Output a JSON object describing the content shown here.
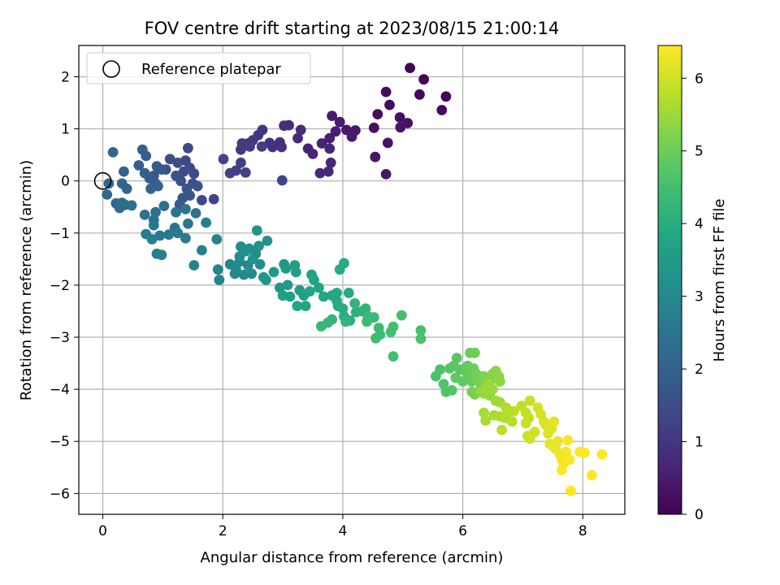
{
  "chart_data": {
    "type": "scatter",
    "title": "FOV centre drift starting at 2023/08/15 21:00:14",
    "xlabel": "Angular distance from reference (arcmin)",
    "ylabel": "Rotation from reference (arcmin)",
    "xlim": [
      -0.4,
      8.7
    ],
    "ylim": [
      -6.4,
      2.6
    ],
    "xticks": [
      0,
      2,
      4,
      6,
      8
    ],
    "yticks": [
      -6,
      -5,
      -4,
      -3,
      -2,
      -1,
      0,
      1,
      2
    ],
    "grid": true,
    "legend": {
      "placement": "top-left",
      "entries": [
        "Reference platepar"
      ]
    },
    "reference_point": {
      "x": 0,
      "y": 0
    },
    "colorbar": {
      "label": "Hours from first FF file",
      "min": 0,
      "max": 6.45,
      "ticks": [
        0,
        1,
        2,
        3,
        4,
        5,
        6
      ],
      "colormap": "viridis"
    },
    "points": [
      [
        5.12,
        2.17,
        0.05
      ],
      [
        5.35,
        1.95,
        0.08
      ],
      [
        5.72,
        1.62,
        0.1
      ],
      [
        5.65,
        1.36,
        0.12
      ],
      [
        5.28,
        1.66,
        0.15
      ],
      [
        4.72,
        1.71,
        0.18
      ],
      [
        4.78,
        1.46,
        0.2
      ],
      [
        4.58,
        1.28,
        0.22
      ],
      [
        4.52,
        1.02,
        0.25
      ],
      [
        4.95,
        1.22,
        0.28
      ],
      [
        5.08,
        1.11,
        0.3
      ],
      [
        4.96,
        1.03,
        0.33
      ],
      [
        4.75,
        0.73,
        0.35
      ],
      [
        4.54,
        0.46,
        0.38
      ],
      [
        4.72,
        0.13,
        0.4
      ],
      [
        4.06,
        0.98,
        0.42
      ],
      [
        4.21,
        0.97,
        0.45
      ],
      [
        4.15,
        0.85,
        0.48
      ],
      [
        3.95,
        1.13,
        0.5
      ],
      [
        3.82,
        1.25,
        0.53
      ],
      [
        3.88,
        0.95,
        0.55
      ],
      [
        3.78,
        0.82,
        0.58
      ],
      [
        3.65,
        0.72,
        0.6
      ],
      [
        3.42,
        0.62,
        0.62
      ],
      [
        3.5,
        0.52,
        0.65
      ],
      [
        3.78,
        0.62,
        0.68
      ],
      [
        3.8,
        0.35,
        0.7
      ],
      [
        3.76,
        0.18,
        0.72
      ],
      [
        3.62,
        0.15,
        0.75
      ],
      [
        3.25,
        0.82,
        0.78
      ],
      [
        3.3,
        0.98,
        0.8
      ],
      [
        3.1,
        1.07,
        0.82
      ],
      [
        3.02,
        1.06,
        0.85
      ],
      [
        2.95,
        0.74,
        0.88
      ],
      [
        2.98,
        0.65,
        0.9
      ],
      [
        2.83,
        0.65,
        0.92
      ],
      [
        2.78,
        0.73,
        0.95
      ],
      [
        2.66,
        0.98,
        0.98
      ],
      [
        2.59,
        0.88,
        1.0
      ],
      [
        2.5,
        0.78,
        1.02
      ],
      [
        2.42,
        0.72,
        1.05
      ],
      [
        2.32,
        0.72,
        1.08
      ],
      [
        2.3,
        0.6,
        1.1
      ],
      [
        2.45,
        0.66,
        1.12
      ],
      [
        2.65,
        0.66,
        1.15
      ],
      [
        2.3,
        0.35,
        1.18
      ],
      [
        2.22,
        0.2,
        1.2
      ],
      [
        2.12,
        0.15,
        1.22
      ],
      [
        2.38,
        0.16,
        1.25
      ],
      [
        2.01,
        0.42,
        1.28
      ],
      [
        2.99,
        0.01,
        1.3
      ],
      [
        1.85,
        -0.35,
        1.32
      ],
      [
        1.65,
        -0.37,
        1.35
      ],
      [
        1.42,
        0.63,
        1.38
      ],
      [
        1.38,
        0.39,
        1.4
      ],
      [
        1.45,
        0.25,
        1.42
      ],
      [
        1.52,
        0.14,
        1.45
      ],
      [
        1.35,
        0.18,
        1.48
      ],
      [
        1.25,
        0.35,
        1.5
      ],
      [
        1.12,
        0.42,
        1.52
      ],
      [
        1.05,
        0.22,
        1.55
      ],
      [
        1.22,
        0.1,
        1.58
      ],
      [
        1.3,
        0.0,
        1.6
      ],
      [
        1.4,
        -0.15,
        1.62
      ],
      [
        1.5,
        -0.05,
        1.65
      ],
      [
        1.58,
        -0.1,
        1.68
      ],
      [
        1.45,
        -0.28,
        1.7
      ],
      [
        1.33,
        -0.33,
        1.72
      ],
      [
        1.28,
        -0.45,
        1.75
      ],
      [
        0.9,
        0.28,
        1.78
      ],
      [
        0.98,
        0.22,
        1.8
      ],
      [
        0.85,
        0.1,
        1.82
      ],
      [
        0.88,
        -0.05,
        1.85
      ],
      [
        0.78,
        0.05,
        1.88
      ],
      [
        0.7,
        0.15,
        1.9
      ],
      [
        0.72,
        0.48,
        1.92
      ],
      [
        0.66,
        0.6,
        1.95
      ],
      [
        0.6,
        0.3,
        1.98
      ],
      [
        0.92,
        -0.1,
        2.0
      ],
      [
        0.8,
        -0.15,
        2.02
      ],
      [
        0.35,
        0.18,
        2.05
      ],
      [
        0.4,
        -0.15,
        2.08
      ],
      [
        0.32,
        -0.05,
        2.1
      ],
      [
        0.17,
        0.55,
        2.12
      ],
      [
        0.1,
        -0.05,
        2.15
      ],
      [
        0.07,
        -0.26,
        2.18
      ],
      [
        0.22,
        -0.43,
        2.2
      ],
      [
        0.28,
        -0.52,
        2.22
      ],
      [
        0.37,
        -0.46,
        2.25
      ],
      [
        0.48,
        -0.47,
        2.28
      ],
      [
        0.32,
        -0.42,
        2.3
      ],
      [
        1.02,
        -0.48,
        2.32
      ],
      [
        0.88,
        -0.6,
        2.35
      ],
      [
        0.85,
        -0.75,
        2.38
      ],
      [
        0.7,
        -0.65,
        2.4
      ],
      [
        1.22,
        -0.6,
        2.42
      ],
      [
        1.38,
        -0.54,
        2.45
      ],
      [
        1.55,
        -0.62,
        2.48
      ],
      [
        1.42,
        -0.82,
        2.5
      ],
      [
        1.2,
        -0.9,
        2.52
      ],
      [
        0.85,
        -0.85,
        2.55
      ],
      [
        0.95,
        -1.05,
        2.58
      ],
      [
        1.1,
        -1.03,
        2.6
      ],
      [
        1.25,
        -1.0,
        2.62
      ],
      [
        1.38,
        -1.1,
        2.65
      ],
      [
        0.72,
        -1.02,
        2.68
      ],
      [
        0.82,
        -1.12,
        2.7
      ],
      [
        0.9,
        -1.4,
        2.72
      ],
      [
        0.98,
        -1.42,
        2.75
      ],
      [
        1.72,
        -0.8,
        2.78
      ],
      [
        1.65,
        -1.33,
        2.8
      ],
      [
        1.52,
        -1.62,
        2.82
      ],
      [
        1.9,
        -1.12,
        2.85
      ],
      [
        1.92,
        -1.7,
        2.88
      ],
      [
        1.94,
        -1.9,
        2.9
      ],
      [
        2.12,
        -1.6,
        2.92
      ],
      [
        2.28,
        -1.55,
        2.95
      ],
      [
        2.42,
        -1.62,
        2.98
      ],
      [
        2.22,
        -1.7,
        3.0
      ],
      [
        2.2,
        -1.78,
        3.02
      ],
      [
        2.35,
        -1.8,
        3.05
      ],
      [
        2.48,
        -1.78,
        3.08
      ],
      [
        2.28,
        -1.45,
        3.1
      ],
      [
        2.3,
        -1.26,
        3.12
      ],
      [
        2.44,
        -1.3,
        3.15
      ],
      [
        2.55,
        -1.4,
        3.18
      ],
      [
        2.62,
        -1.6,
        3.2
      ],
      [
        2.38,
        -1.35,
        3.22
      ],
      [
        2.5,
        -1.5,
        3.25
      ],
      [
        2.6,
        -1.25,
        3.28
      ],
      [
        2.57,
        -0.95,
        3.3
      ],
      [
        2.74,
        -1.15,
        3.32
      ],
      [
        2.68,
        -1.85,
        3.35
      ],
      [
        2.72,
        -1.9,
        3.38
      ],
      [
        2.95,
        -2.05,
        3.4
      ],
      [
        3.08,
        -2.0,
        3.42
      ],
      [
        2.85,
        -1.75,
        3.45
      ],
      [
        3.05,
        -1.68,
        3.48
      ],
      [
        3.02,
        -1.6,
        3.5
      ],
      [
        3.2,
        -1.62,
        3.52
      ],
      [
        3.22,
        -1.75,
        3.55
      ],
      [
        3.28,
        -2.1,
        3.58
      ],
      [
        3.35,
        -2.2,
        3.6
      ],
      [
        3.12,
        -2.22,
        3.62
      ],
      [
        3.0,
        -2.2,
        3.65
      ],
      [
        3.48,
        -1.8,
        3.68
      ],
      [
        3.52,
        -1.9,
        3.7
      ],
      [
        3.6,
        -2.05,
        3.72
      ],
      [
        3.45,
        -2.12,
        3.75
      ],
      [
        3.38,
        -2.4,
        3.78
      ],
      [
        3.24,
        -2.4,
        3.8
      ],
      [
        3.68,
        -2.22,
        3.82
      ],
      [
        3.82,
        -2.2,
        3.85
      ],
      [
        3.9,
        -2.3,
        3.88
      ],
      [
        3.9,
        -2.15,
        3.9
      ],
      [
        4.1,
        -2.15,
        3.92
      ],
      [
        3.95,
        -1.7,
        3.95
      ],
      [
        4.02,
        -1.58,
        3.98
      ],
      [
        3.92,
        -2.4,
        4.0
      ],
      [
        4.0,
        -2.45,
        4.02
      ],
      [
        4.02,
        -2.6,
        4.05
      ],
      [
        4.12,
        -2.68,
        4.08
      ],
      [
        4.22,
        -2.52,
        4.1
      ],
      [
        4.32,
        -2.5,
        4.12
      ],
      [
        4.38,
        -2.45,
        4.15
      ],
      [
        4.2,
        -2.35,
        4.18
      ],
      [
        4.05,
        -2.7,
        4.2
      ],
      [
        3.82,
        -2.66,
        4.22
      ],
      [
        3.75,
        -2.72,
        4.25
      ],
      [
        3.64,
        -2.79,
        4.28
      ],
      [
        4.42,
        -2.6,
        4.3
      ],
      [
        4.52,
        -2.62,
        4.32
      ],
      [
        4.4,
        -2.7,
        4.35
      ],
      [
        4.6,
        -2.82,
        4.38
      ],
      [
        4.62,
        -2.95,
        4.4
      ],
      [
        4.55,
        -3.02,
        4.42
      ],
      [
        4.8,
        -2.9,
        4.45
      ],
      [
        4.84,
        -2.8,
        4.48
      ],
      [
        4.98,
        -2.58,
        4.5
      ],
      [
        4.84,
        -3.37,
        4.52
      ],
      [
        5.3,
        -2.87,
        4.55
      ],
      [
        5.3,
        -3.03,
        4.58
      ],
      [
        5.55,
        -3.75,
        4.6
      ],
      [
        5.62,
        -3.62,
        4.62
      ],
      [
        5.68,
        -3.9,
        4.65
      ],
      [
        5.72,
        -4.05,
        4.68
      ],
      [
        5.82,
        -4.02,
        4.7
      ],
      [
        5.78,
        -3.6,
        4.72
      ],
      [
        5.85,
        -3.55,
        4.75
      ],
      [
        5.9,
        -3.4,
        4.78
      ],
      [
        5.95,
        -3.62,
        4.8
      ],
      [
        5.88,
        -3.78,
        4.82
      ],
      [
        6.0,
        -3.85,
        4.85
      ],
      [
        6.05,
        -3.65,
        4.88
      ],
      [
        6.08,
        -3.55,
        4.9
      ],
      [
        6.1,
        -3.75,
        4.92
      ],
      [
        6.15,
        -3.85,
        4.95
      ],
      [
        6.12,
        -3.3,
        4.98
      ],
      [
        6.2,
        -3.3,
        5.0
      ],
      [
        6.18,
        -3.6,
        5.02
      ],
      [
        6.22,
        -3.7,
        5.05
      ],
      [
        6.25,
        -3.8,
        5.08
      ],
      [
        6.3,
        -3.95,
        5.1
      ],
      [
        6.15,
        -4.05,
        5.12
      ],
      [
        6.2,
        -4.1,
        5.15
      ],
      [
        6.28,
        -4.05,
        5.18
      ],
      [
        6.35,
        -3.75,
        5.2
      ],
      [
        6.4,
        -3.9,
        5.22
      ],
      [
        6.45,
        -3.85,
        5.25
      ],
      [
        6.5,
        -3.7,
        5.28
      ],
      [
        6.55,
        -3.65,
        5.3
      ],
      [
        6.6,
        -3.75,
        5.32
      ],
      [
        6.62,
        -3.85,
        5.35
      ],
      [
        6.35,
        -4.08,
        5.38
      ],
      [
        6.45,
        -4.12,
        5.4
      ],
      [
        6.3,
        -4.05,
        5.42
      ],
      [
        6.38,
        -4.0,
        5.45
      ],
      [
        6.42,
        -3.9,
        5.48
      ],
      [
        6.5,
        -4.0,
        5.5
      ],
      [
        6.55,
        -4.22,
        5.52
      ],
      [
        6.62,
        -4.25,
        5.55
      ],
      [
        6.35,
        -4.45,
        5.58
      ],
      [
        6.38,
        -4.6,
        5.6
      ],
      [
        6.52,
        -4.5,
        5.62
      ],
      [
        6.62,
        -4.52,
        5.65
      ],
      [
        6.7,
        -4.55,
        5.68
      ],
      [
        6.75,
        -4.45,
        5.7
      ],
      [
        6.72,
        -4.35,
        5.72
      ],
      [
        6.82,
        -4.62,
        5.75
      ],
      [
        6.85,
        -4.42,
        5.78
      ],
      [
        6.65,
        -4.78,
        5.8
      ],
      [
        6.98,
        -4.32,
        5.82
      ],
      [
        7.05,
        -4.45,
        5.85
      ],
      [
        7.1,
        -4.55,
        5.88
      ],
      [
        7.12,
        -4.22,
        5.9
      ],
      [
        7.05,
        -4.65,
        5.92
      ],
      [
        7.08,
        -4.9,
        5.95
      ],
      [
        7.12,
        -4.95,
        5.98
      ],
      [
        7.2,
        -4.82,
        6.0
      ],
      [
        7.25,
        -4.35,
        6.02
      ],
      [
        7.3,
        -4.48,
        6.05
      ],
      [
        7.35,
        -4.62,
        6.08
      ],
      [
        7.38,
        -4.68,
        6.1
      ],
      [
        7.42,
        -4.85,
        6.12
      ],
      [
        7.48,
        -4.75,
        6.15
      ],
      [
        7.52,
        -4.62,
        6.18
      ],
      [
        7.45,
        -5.05,
        6.2
      ],
      [
        7.52,
        -5.1,
        6.22
      ],
      [
        7.58,
        -5.0,
        6.25
      ],
      [
        7.55,
        -5.15,
        6.28
      ],
      [
        7.62,
        -5.25,
        6.3
      ],
      [
        7.65,
        -5.35,
        6.32
      ],
      [
        7.68,
        -5.42,
        6.35
      ],
      [
        7.72,
        -5.2,
        6.38
      ],
      [
        7.75,
        -4.98,
        6.4
      ],
      [
        7.78,
        -5.35,
        6.42
      ],
      [
        7.65,
        -5.55,
        6.43
      ],
      [
        7.8,
        -5.95,
        6.44
      ],
      [
        7.95,
        -5.2,
        6.44
      ],
      [
        8.03,
        -5.22,
        6.45
      ],
      [
        8.15,
        -5.65,
        6.45
      ],
      [
        8.32,
        -5.25,
        6.45
      ]
    ]
  }
}
